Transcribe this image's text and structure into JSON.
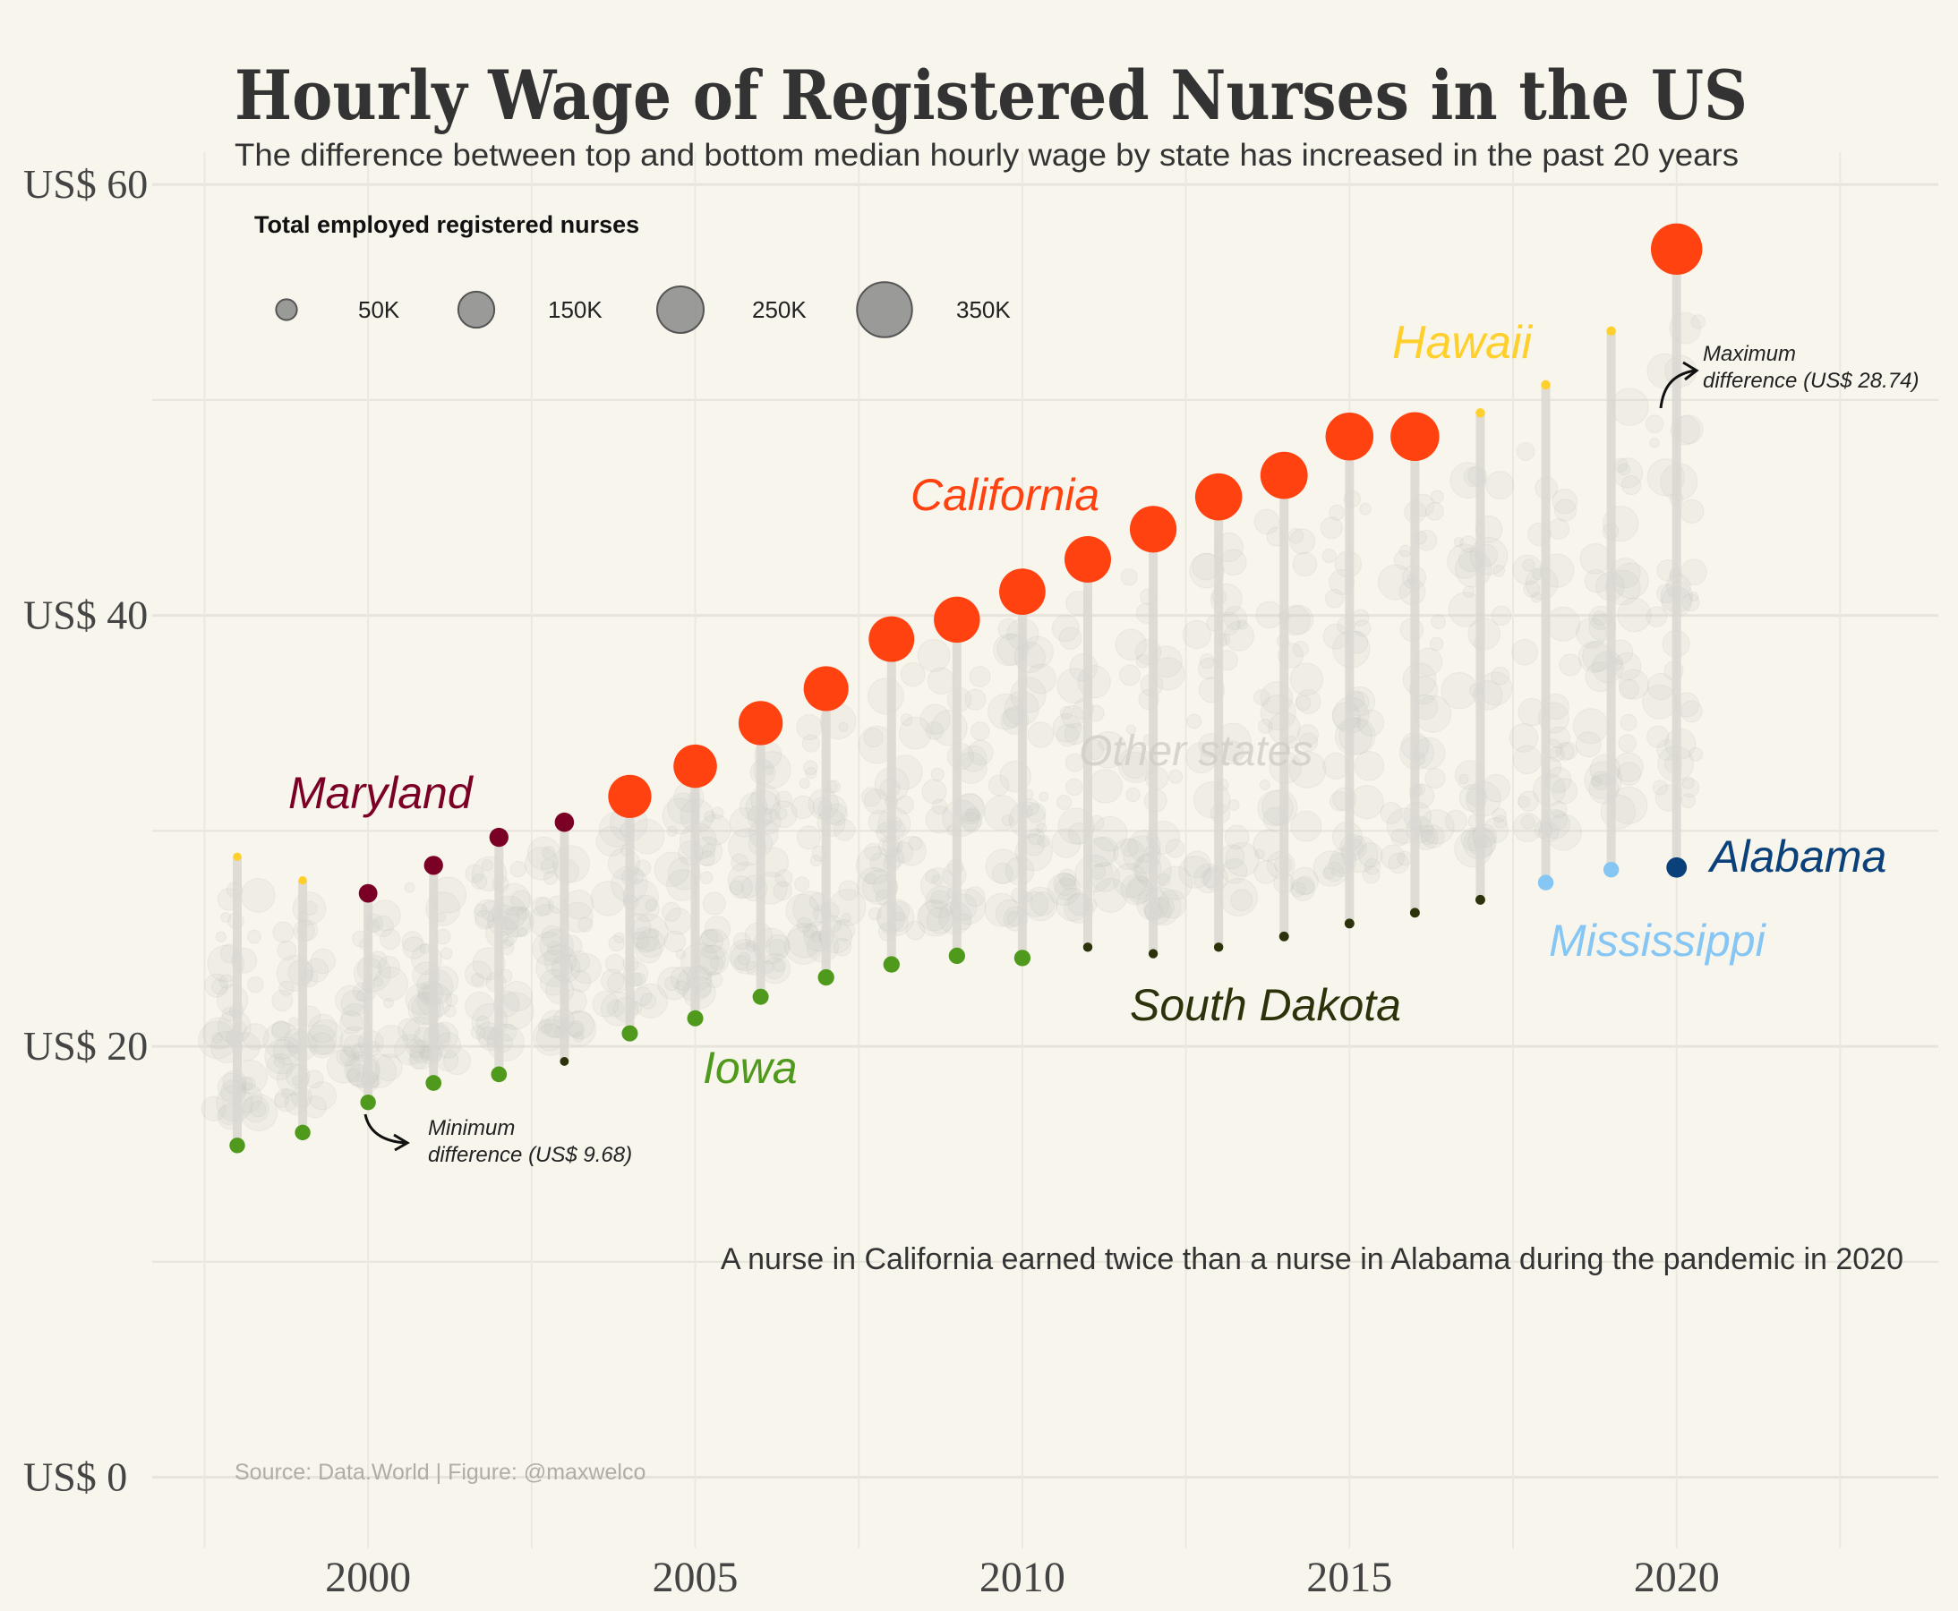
{
  "title": "Hourly Wage of Registered Nurses in the US",
  "subtitle": "The difference between top and bottom median hourly wage by state has increased in the past 20 years",
  "legend": {
    "title": "Total employed registered nurses",
    "items": [
      {
        "label": "50K",
        "value": 50000
      },
      {
        "label": "150K",
        "value": 150000
      },
      {
        "label": "250K",
        "value": 250000
      },
      {
        "label": "350K",
        "value": 350000
      }
    ],
    "color": "#8a8a8a"
  },
  "annotations": {
    "min_note_line1": "Minimum",
    "min_note_line2": "difference (US$ 9.68)",
    "max_note_line1": "Maximum",
    "max_note_line2": "difference (US$ 28.74)",
    "caption": "A nurse in California earned twice than a nurse in Alabama during the pandemic in 2020",
    "source": "Source: Data.World | Figure: @maxwelco",
    "other_states": "Other states"
  },
  "state_labels": {
    "hawaii": "Hawaii",
    "california": "California",
    "maryland": "Maryland",
    "alabama": "Alabama",
    "mississippi": "Mississippi",
    "south_dakota": "South Dakota",
    "iowa": "Iowa"
  },
  "colors": {
    "background": "#f8f5ec",
    "california": "#ff4210",
    "hawaii": "#ffcf2c",
    "maryland": "#7a0025",
    "iowa": "#4f9a1c",
    "south_dakota": "#2c320a",
    "mississippi": "#86c6f4",
    "alabama": "#0b417a",
    "range_line": "#d9d7d1",
    "other_points": "#c9c6c0"
  },
  "chart_data": {
    "type": "scatter",
    "xlabel": "",
    "ylabel": "",
    "xlim": [
      1996.7,
      2024.0
    ],
    "ylim": [
      -3.3,
      61.5
    ],
    "x_ticks": [
      {
        "value": 2000,
        "label": "2000"
      },
      {
        "value": 2005,
        "label": "2005"
      },
      {
        "value": 2010,
        "label": "2010"
      },
      {
        "value": 2015,
        "label": "2015"
      },
      {
        "value": 2020,
        "label": "2020"
      }
    ],
    "y_ticks": [
      {
        "value": 0,
        "label": "US$ 0"
      },
      {
        "value": 20,
        "label": "US$ 20"
      },
      {
        "value": 40,
        "label": "US$ 40"
      },
      {
        "value": 60,
        "label": "US$ 60"
      }
    ],
    "grid": true,
    "legend_position": "top-left",
    "years": [
      1998,
      1999,
      2000,
      2001,
      2002,
      2003,
      2004,
      2005,
      2006,
      2007,
      2008,
      2009,
      2010,
      2011,
      2012,
      2013,
      2014,
      2015,
      2016,
      2017,
      2018,
      2019,
      2020
    ],
    "max_points": [
      {
        "year": 1998,
        "wage": 28.8,
        "state": "Hawaii",
        "employed": 8000
      },
      {
        "year": 1999,
        "wage": 27.7,
        "state": "Hawaii",
        "employed": 8000
      },
      {
        "year": 2000,
        "wage": 27.1,
        "state": "Maryland",
        "employed": 40000
      },
      {
        "year": 2001,
        "wage": 28.4,
        "state": "Maryland",
        "employed": 42000
      },
      {
        "year": 2002,
        "wage": 29.7,
        "state": "Maryland",
        "employed": 42000
      },
      {
        "year": 2003,
        "wage": 30.4,
        "state": "Maryland",
        "employed": 43000
      },
      {
        "year": 2004,
        "wage": 31.6,
        "state": "California",
        "employed": 215000
      },
      {
        "year": 2005,
        "wage": 33.0,
        "state": "California",
        "employed": 218000
      },
      {
        "year": 2006,
        "wage": 35.0,
        "state": "California",
        "employed": 225000
      },
      {
        "year": 2007,
        "wage": 36.6,
        "state": "California",
        "employed": 232000
      },
      {
        "year": 2008,
        "wage": 38.9,
        "state": "California",
        "employed": 240000
      },
      {
        "year": 2009,
        "wage": 39.8,
        "state": "California",
        "employed": 245000
      },
      {
        "year": 2010,
        "wage": 41.1,
        "state": "California",
        "employed": 248000
      },
      {
        "year": 2011,
        "wage": 42.6,
        "state": "California",
        "employed": 250000
      },
      {
        "year": 2012,
        "wage": 44.0,
        "state": "California",
        "employed": 252000
      },
      {
        "year": 2013,
        "wage": 45.5,
        "state": "California",
        "employed": 255000
      },
      {
        "year": 2014,
        "wage": 46.5,
        "state": "California",
        "employed": 258000
      },
      {
        "year": 2015,
        "wage": 48.3,
        "state": "California",
        "employed": 265000
      },
      {
        "year": 2016,
        "wage": 48.3,
        "state": "California",
        "employed": 275000
      },
      {
        "year": 2017,
        "wage": 49.4,
        "state": "Hawaii",
        "employed": 10000
      },
      {
        "year": 2018,
        "wage": 50.7,
        "state": "Hawaii",
        "employed": 10000
      },
      {
        "year": 2019,
        "wage": 53.2,
        "state": "Hawaii",
        "employed": 10000
      },
      {
        "year": 2020,
        "wage": 57.0,
        "state": "California",
        "employed": 305000
      }
    ],
    "min_points": [
      {
        "year": 1998,
        "wage": 15.4,
        "state": "Iowa",
        "employed": 28000
      },
      {
        "year": 1999,
        "wage": 16.0,
        "state": "Iowa",
        "employed": 28000
      },
      {
        "year": 2000,
        "wage": 17.4,
        "state": "Iowa",
        "employed": 28000
      },
      {
        "year": 2001,
        "wage": 18.3,
        "state": "Iowa",
        "employed": 29000
      },
      {
        "year": 2002,
        "wage": 18.7,
        "state": "Iowa",
        "employed": 29000
      },
      {
        "year": 2003,
        "wage": 19.3,
        "state": "South Dakota",
        "employed": 9000
      },
      {
        "year": 2004,
        "wage": 20.6,
        "state": "Iowa",
        "employed": 30000
      },
      {
        "year": 2005,
        "wage": 21.3,
        "state": "Iowa",
        "employed": 30000
      },
      {
        "year": 2006,
        "wage": 22.3,
        "state": "Iowa",
        "employed": 30000
      },
      {
        "year": 2007,
        "wage": 23.2,
        "state": "Iowa",
        "employed": 31000
      },
      {
        "year": 2008,
        "wage": 23.8,
        "state": "Iowa",
        "employed": 31000
      },
      {
        "year": 2009,
        "wage": 24.2,
        "state": "Iowa",
        "employed": 31000
      },
      {
        "year": 2010,
        "wage": 24.1,
        "state": "Iowa",
        "employed": 31000
      },
      {
        "year": 2011,
        "wage": 24.6,
        "state": "South Dakota",
        "employed": 10000
      },
      {
        "year": 2012,
        "wage": 24.3,
        "state": "South Dakota",
        "employed": 10000
      },
      {
        "year": 2013,
        "wage": 24.6,
        "state": "South Dakota",
        "employed": 10000
      },
      {
        "year": 2014,
        "wage": 25.1,
        "state": "South Dakota",
        "employed": 11000
      },
      {
        "year": 2015,
        "wage": 25.7,
        "state": "South Dakota",
        "employed": 11000
      },
      {
        "year": 2016,
        "wage": 26.2,
        "state": "South Dakota",
        "employed": 11000
      },
      {
        "year": 2017,
        "wage": 26.8,
        "state": "South Dakota",
        "employed": 11000
      },
      {
        "year": 2018,
        "wage": 27.6,
        "state": "Mississippi",
        "employed": 28000
      },
      {
        "year": 2019,
        "wage": 28.2,
        "state": "Mississippi",
        "employed": 28000
      },
      {
        "year": 2020,
        "wage": 28.3,
        "state": "Alabama",
        "employed": 48000
      }
    ]
  }
}
